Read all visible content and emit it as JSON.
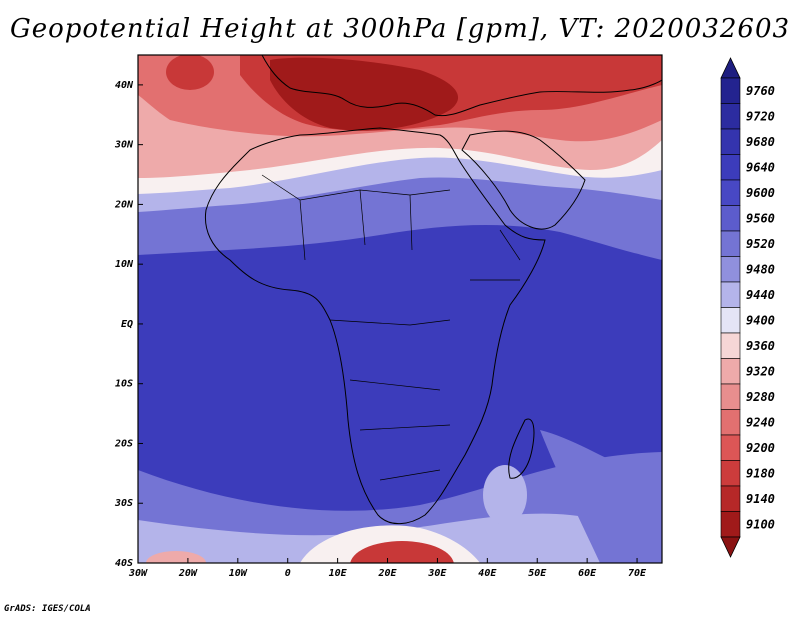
{
  "title": "Geopotential Height at 300hPa [gpm], VT: 2020032603",
  "credit": "GrADS: IGES/COLA",
  "axes": {
    "lon_ticks": [
      "30W",
      "20W",
      "10W",
      "0",
      "10E",
      "20E",
      "30E",
      "40E",
      "50E",
      "60E",
      "70E"
    ],
    "lat_ticks": [
      "40N",
      "30N",
      "20N",
      "10N",
      "EQ",
      "10S",
      "20S",
      "30S",
      "40S"
    ]
  },
  "colorbar": {
    "levels": [
      "9760",
      "9720",
      "9680",
      "9640",
      "9600",
      "9560",
      "9520",
      "9480",
      "9440",
      "9400",
      "9360",
      "9320",
      "9280",
      "9240",
      "9200",
      "9180",
      "9140",
      "9100"
    ],
    "colors": [
      "#23238f",
      "#2c2ca0",
      "#3434ae",
      "#3c3cbb",
      "#4848c4",
      "#5c5ccc",
      "#7474d4",
      "#9090dd",
      "#b4b4ea",
      "#e4e4f6",
      "#f6d6d6",
      "#eeaaaa",
      "#e88e8e",
      "#e27070",
      "#dc5656",
      "#cc3c3c",
      "#b62828",
      "#a01a1a"
    ],
    "top_arrow_color": "#1e1e80",
    "bottom_arrow_color": "#8a1212"
  },
  "map_colors": {
    "band_north_darkest": "#a01a1a",
    "band_north_dark": "#c83838",
    "band_north_mid": "#e27070",
    "band_north_light": "#eeaaaa",
    "band_transition": "#f8f0f0",
    "band_blue_light": "#b4b4ea",
    "band_blue_mid": "#7474d4",
    "band_blue_main": "#3c3cbb",
    "land_outline": "#000000"
  }
}
